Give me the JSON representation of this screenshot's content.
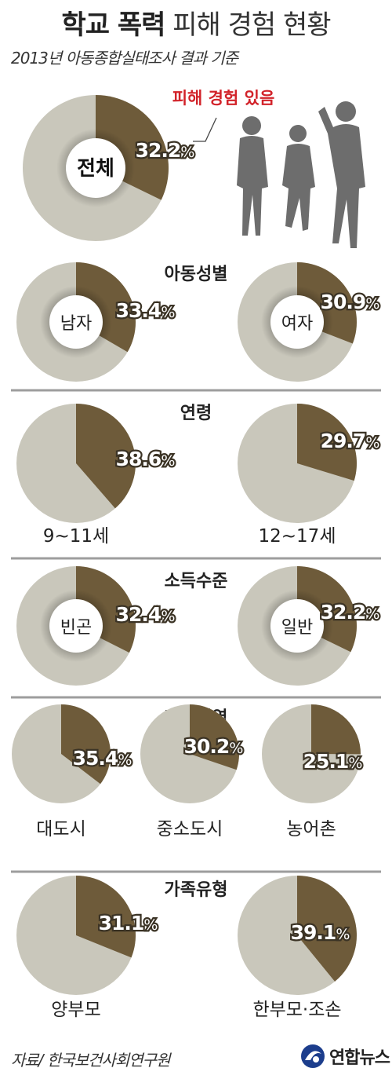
{
  "title": {
    "bold": "학교 폭력",
    "light": "피해 경험 현황"
  },
  "subtitle": "2013년 아동종합실태조사 결과 기준",
  "source": "자료/ 한국보건사회연구원",
  "logo": {
    "name": "연합뉴스",
    "icon": "yonhap-logo-icon"
  },
  "callout": "피해 경험 있음",
  "colors": {
    "victim": "#6e5b3a",
    "rest": "#c9c7bb",
    "divider": "#9d9d9d"
  },
  "chart_data": [
    {
      "type": "pie",
      "id": "total",
      "title": "",
      "values": [
        {
          "label": "전체",
          "value": 32.2,
          "text": "32.2"
        }
      ]
    },
    {
      "type": "pie",
      "id": "gender",
      "title": "아동성별",
      "values": [
        {
          "label": "남자",
          "value": 33.4,
          "text": "33.4"
        },
        {
          "label": "여자",
          "value": 30.9,
          "text": "30.9"
        }
      ]
    },
    {
      "type": "pie",
      "id": "age",
      "title": "연령",
      "values": [
        {
          "label": "9~11세",
          "value": 38.6,
          "text": "38.6"
        },
        {
          "label": "12~17세",
          "value": 29.7,
          "text": "29.7"
        }
      ]
    },
    {
      "type": "pie",
      "id": "income",
      "title": "소득수준",
      "values": [
        {
          "label": "빈곤",
          "value": 32.4,
          "text": "32.4"
        },
        {
          "label": "일반",
          "value": 32.2,
          "text": "32.2"
        }
      ]
    },
    {
      "type": "pie",
      "id": "region",
      "title": "거주지역",
      "values": [
        {
          "label": "대도시",
          "value": 35.4,
          "text": "35.4"
        },
        {
          "label": "중소도시",
          "value": 30.2,
          "text": "30.2"
        },
        {
          "label": "농어촌",
          "value": 25.1,
          "text": "25.1"
        }
      ]
    },
    {
      "type": "pie",
      "id": "family",
      "title": "가족유형",
      "values": [
        {
          "label": "양부모",
          "value": 31.1,
          "text": "31.1"
        },
        {
          "label": "한부모·조손",
          "value": 39.1,
          "text": "39.1"
        }
      ]
    }
  ]
}
